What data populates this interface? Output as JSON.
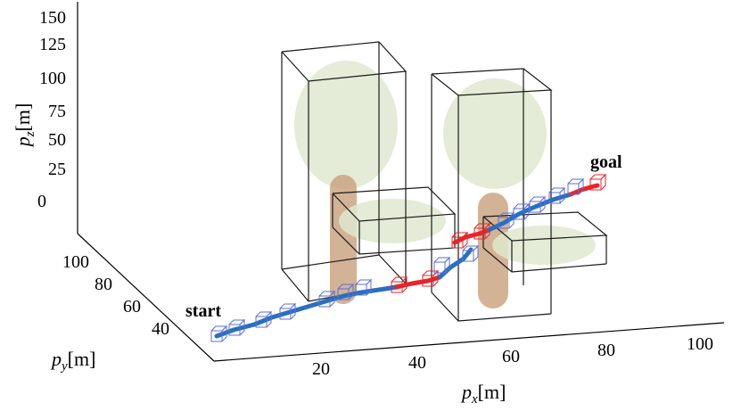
{
  "axes": {
    "x": {
      "label_var": "p",
      "label_sub": "x",
      "label_unit": "[m]",
      "ticks": [
        "20",
        "40",
        "60",
        "80",
        "100"
      ]
    },
    "y": {
      "label_var": "p",
      "label_sub": "y",
      "label_unit": "[m]",
      "ticks": [
        "40",
        "60",
        "80",
        "100"
      ]
    },
    "z": {
      "label_var": "p",
      "label_sub": "z",
      "label_unit": "[m]",
      "ticks": [
        "0",
        "25",
        "50",
        "75",
        "100",
        "125",
        "150"
      ]
    }
  },
  "annotations": {
    "start": "start",
    "goal": "goal"
  },
  "colors": {
    "path_blue": "#2a6fbf",
    "path_red": "#e8232a",
    "marker_blue": "#5b6fd6",
    "marker_red": "#e8232a",
    "foliage": "#dfe8cf",
    "trunk": "#c8a07a",
    "edge": "#1a1a1a"
  }
}
